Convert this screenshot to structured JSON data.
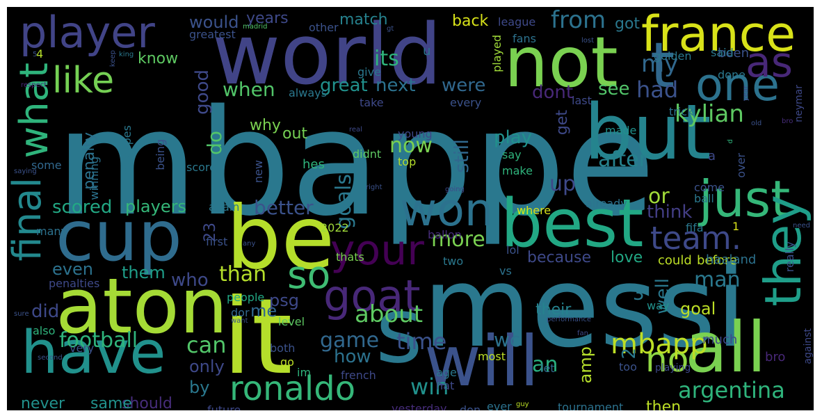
{
  "cloud": {
    "words": [
      {
        "t": "mbappe",
        "c": "#2a788e"
      },
      {
        "t": "messi",
        "c": "#2a788e"
      },
      {
        "t": "world",
        "c": "#414487"
      },
      {
        "t": "it",
        "c": "#b5de2b"
      },
      {
        "t": "be",
        "c": "#b5de2b"
      },
      {
        "t": "aton",
        "c": "#a5db36"
      },
      {
        "t": "cup",
        "c": "#2f6c8e"
      },
      {
        "t": "not",
        "c": "#7ad151"
      },
      {
        "t": "but",
        "c": "#25848e"
      },
      {
        "t": "s",
        "c": "#2a788e"
      },
      {
        "t": "all",
        "c": "#7ad151"
      },
      {
        "t": "will",
        "c": "#3b528b"
      },
      {
        "t": "have",
        "c": "#21918c"
      },
      {
        "t": "best",
        "c": "#22a884"
      },
      {
        "t": "france",
        "c": "#d8e219"
      },
      {
        "t": "player",
        "c": "#414487"
      },
      {
        "t": "t",
        "c": "#31688e"
      },
      {
        "t": "one",
        "c": "#2c728e"
      },
      {
        "t": "as",
        "c": "#482878"
      },
      {
        "t": "like",
        "c": "#75d054"
      },
      {
        "t": "what",
        "c": "#2fb47c"
      },
      {
        "t": "final",
        "c": "#23898e"
      },
      {
        "t": "just",
        "c": "#35b779"
      },
      {
        "t": "won",
        "c": "#2c728e"
      },
      {
        "t": "your",
        "c": "#440154"
      },
      {
        "t": "so",
        "c": "#3fbc73"
      },
      {
        "t": "goat",
        "c": "#482878"
      },
      {
        "t": "team.",
        "c": "#3e4989"
      },
      {
        "t": "they",
        "c": "#1f9e89"
      },
      {
        "t": "ronaldo",
        "c": "#35b779"
      },
      {
        "t": "no",
        "c": "#90d743"
      },
      {
        "t": "mbapp",
        "c": "#bddf26"
      },
      {
        "t": "kylian",
        "c": "#5ec962"
      },
      {
        "t": "football",
        "c": "#2fb47c"
      },
      {
        "t": "argentina",
        "c": "#2fb47c"
      },
      {
        "t": "goals",
        "c": "#2a788e"
      },
      {
        "t": "better",
        "c": "#3b528b"
      },
      {
        "t": "more",
        "c": "#7ad151"
      },
      {
        "t": "about",
        "c": "#5ec962"
      },
      {
        "t": "game",
        "c": "#31688e"
      },
      {
        "t": "time",
        "c": "#3b528b"
      },
      {
        "t": "can",
        "c": "#52c569"
      },
      {
        "t": "win",
        "c": "#21918c"
      },
      {
        "t": "from",
        "c": "#2c728e"
      },
      {
        "t": "my",
        "c": "#31688e"
      },
      {
        "t": "had",
        "c": "#3b528b"
      },
      {
        "t": "its",
        "c": "#2fb47c"
      },
      {
        "t": "next",
        "c": "#2c728e"
      },
      {
        "t": "great",
        "c": "#21918c"
      },
      {
        "t": "were",
        "c": "#31688e"
      },
      {
        "t": "when",
        "c": "#52c569"
      },
      {
        "t": "now",
        "c": "#7ad151"
      },
      {
        "t": "after",
        "c": "#26828e"
      },
      {
        "t": "play",
        "c": "#21918c"
      },
      {
        "t": "up",
        "c": "#3e4989"
      },
      {
        "t": "or",
        "c": "#a0da39"
      },
      {
        "t": "think",
        "c": "#433e85"
      },
      {
        "t": "scored",
        "c": "#22a884"
      },
      {
        "t": "players",
        "c": "#35b779"
      },
      {
        "t": "than",
        "c": "#b5de2b"
      },
      {
        "t": "even",
        "c": "#2c728e"
      },
      {
        "t": "who",
        "c": "#3e4989"
      },
      {
        "t": "did",
        "c": "#3e4989"
      },
      {
        "t": "them",
        "c": "#1f9e89"
      },
      {
        "t": "man",
        "c": "#2a788e"
      },
      {
        "t": "still",
        "c": "#31688e"
      },
      {
        "t": "wc",
        "c": "#2c728e"
      },
      {
        "t": "how",
        "c": "#2c728e"
      },
      {
        "t": "an",
        "c": "#29af7f"
      },
      {
        "t": "only",
        "c": "#3e4989"
      },
      {
        "t": "by",
        "c": "#2a788e"
      },
      {
        "t": "should",
        "c": "#472d7b"
      },
      {
        "t": "never",
        "c": "#21918c"
      },
      {
        "t": "same",
        "c": "#21918c"
      },
      {
        "t": "would",
        "c": "#3b528b"
      },
      {
        "t": "years",
        "c": "#3e4989"
      },
      {
        "t": "match",
        "c": "#26828e"
      },
      {
        "t": "back",
        "c": "#d8e219"
      },
      {
        "t": "got",
        "c": "#2a788e"
      },
      {
        "t": "know",
        "c": "#5ec962"
      },
      {
        "t": "good",
        "c": "#3e4989"
      },
      {
        "t": "do",
        "c": "#52c569"
      },
      {
        "t": "dont",
        "c": "#482878"
      },
      {
        "t": "see",
        "c": "#52c569"
      },
      {
        "t": "get",
        "c": "#3e4989"
      },
      {
        "t": "well",
        "c": "#2a788e"
      },
      {
        "t": "goal",
        "c": "#bddf26"
      },
      {
        "t": "their",
        "c": "#26828e"
      },
      {
        "t": "me",
        "c": "#31688e"
      },
      {
        "t": "because",
        "c": "#3e4989"
      },
      {
        "t": "love",
        "c": "#22a884"
      },
      {
        "t": "could",
        "c": "#bddf26"
      },
      {
        "t": "before",
        "c": "#bddf26"
      },
      {
        "t": "psg",
        "c": "#3e4989"
      },
      {
        "t": "23",
        "c": "#3e4989"
      },
      {
        "t": "3",
        "c": "#2a788e"
      },
      {
        "t": "2",
        "c": "#2a788e"
      },
      {
        "t": "amp",
        "c": "#b5de2b"
      },
      {
        "t": "then",
        "c": "#bddf26"
      },
      {
        "t": "tournament",
        "c": "#2c728e"
      },
      {
        "t": "much",
        "c": "#3e4989"
      },
      {
        "t": "penalty",
        "c": "#2c728e"
      },
      {
        "t": "out",
        "c": "#75d054"
      },
      {
        "t": "why",
        "c": "#7ad151"
      },
      {
        "t": "played",
        "c": "#a0da39"
      },
      {
        "t": "u",
        "c": "#2c728e"
      },
      {
        "t": "other",
        "c": "#3b528b"
      },
      {
        "t": "league",
        "c": "#3e4989"
      },
      {
        "t": "fans",
        "c": "#2c728e"
      },
      {
        "t": "been",
        "c": "#3b528b"
      },
      {
        "t": "done",
        "c": "#2a788e"
      },
      {
        "t": "said",
        "c": "#2a788e"
      },
      {
        "t": "golden",
        "c": "#2a788e"
      },
      {
        "t": "last",
        "c": "#3e4989"
      },
      {
        "t": "neymar",
        "c": "#3e4989"
      },
      {
        "t": "trick",
        "c": "#2c728e"
      },
      {
        "t": "made",
        "c": "#21918c"
      },
      {
        "t": "say",
        "c": "#2fb47c"
      },
      {
        "t": "make",
        "c": "#2fb47c"
      },
      {
        "t": "come",
        "c": "#3b528b"
      },
      {
        "t": "ball",
        "c": "#2a788e"
      },
      {
        "t": "over",
        "c": "#3b528b"
      },
      {
        "t": "already",
        "c": "#2c728e"
      },
      {
        "t": "where",
        "c": "#d8e219"
      },
      {
        "t": "fifa",
        "c": "#2a788e"
      },
      {
        "t": "really",
        "c": "#3b528b"
      },
      {
        "t": "need",
        "c": "#3b528b"
      },
      {
        "t": "1",
        "c": "#d8e219"
      },
      {
        "t": "lol",
        "c": "#3b528b"
      },
      {
        "t": "two",
        "c": "#2a788e"
      },
      {
        "t": "vs",
        "c": "#2c728e"
      },
      {
        "t": "haaland",
        "c": "#2c728e"
      },
      {
        "t": "ballon",
        "c": "#472d7b"
      },
      {
        "t": "thats",
        "c": "#7ad151"
      },
      {
        "t": "2022",
        "c": "#a0da39"
      },
      {
        "t": "again",
        "c": "#2a788e"
      },
      {
        "t": "first",
        "c": "#3b528b"
      },
      {
        "t": "any",
        "c": "#3b528b"
      },
      {
        "t": "people",
        "c": "#22a884"
      },
      {
        "t": "dor",
        "c": "#31688e"
      },
      {
        "t": "level",
        "c": "#5ec962"
      },
      {
        "t": "want",
        "c": "#3b528b"
      },
      {
        "t": "way",
        "c": "#21918c"
      },
      {
        "t": "performance",
        "c": "#3b528b"
      },
      {
        "t": "fan",
        "c": "#3e4989"
      },
      {
        "t": "most",
        "c": "#bddf26"
      },
      {
        "t": "age",
        "c": "#2a788e"
      },
      {
        "t": "hat",
        "c": "#3e4989"
      },
      {
        "t": "im",
        "c": "#2fb47c"
      },
      {
        "t": "go",
        "c": "#bddf26"
      },
      {
        "t": "french",
        "c": "#3e4989"
      },
      {
        "t": "both",
        "c": "#3b528b"
      },
      {
        "t": "too",
        "c": "#3b528b"
      },
      {
        "t": "playing",
        "c": "#3e4989"
      },
      {
        "t": "let",
        "c": "#31688e"
      },
      {
        "t": "ever",
        "c": "#2c728e"
      },
      {
        "t": "guy",
        "c": "#bddf26"
      },
      {
        "t": "don",
        "c": "#3b528b"
      },
      {
        "t": "yesterday",
        "c": "#472d7b"
      },
      {
        "t": "future",
        "c": "#3e4989"
      },
      {
        "t": "against",
        "c": "#3e4989"
      },
      {
        "t": "bro",
        "c": "#482878"
      },
      {
        "t": "very",
        "c": "#3b528b"
      },
      {
        "t": "also",
        "c": "#2fb47c"
      },
      {
        "t": "second",
        "c": "#3b528b"
      },
      {
        "t": "sure",
        "c": "#3b528b"
      },
      {
        "t": "penalties",
        "c": "#3e4989"
      },
      {
        "t": "many",
        "c": "#2c728e"
      },
      {
        "t": "some",
        "c": "#31688e"
      },
      {
        "t": "saying",
        "c": "#3b528b"
      },
      {
        "t": "winning",
        "c": "#2c728e"
      },
      {
        "t": "mbappes",
        "c": "#2a788e"
      },
      {
        "t": "being",
        "c": "#3b528b"
      },
      {
        "t": "new",
        "c": "#3b528b"
      },
      {
        "t": "right",
        "c": "#3b528b"
      },
      {
        "t": "top",
        "c": "#b5de2b"
      },
      {
        "t": "hes",
        "c": "#2fb47c"
      },
      {
        "t": "didnt",
        "c": "#5ec962"
      },
      {
        "t": "score",
        "c": "#2a788e"
      },
      {
        "t": "young",
        "c": "#3e4989"
      },
      {
        "t": "real",
        "c": "#3e4989"
      },
      {
        "t": "every",
        "c": "#3b528b"
      },
      {
        "t": "year",
        "c": "#3e4989"
      },
      {
        "t": "take",
        "c": "#3e4989"
      },
      {
        "t": "give",
        "c": "#2a788e"
      },
      {
        "t": "always",
        "c": "#2a788e"
      },
      {
        "t": "going",
        "c": "#3e4989"
      },
      {
        "t": "greatest",
        "c": "#3b528b"
      },
      {
        "t": "madrid",
        "c": "#52c569"
      },
      {
        "t": "4",
        "c": "#b5de2b"
      },
      {
        "t": "5",
        "c": "#3b528b"
      },
      {
        "t": "keep",
        "c": "#3b528b"
      },
      {
        "t": "king",
        "c": "#2a788e"
      },
      {
        "t": "gt",
        "c": "#3b528b"
      },
      {
        "t": "lost",
        "c": "#3b528b"
      },
      {
        "t": "respect",
        "c": "#482878"
      },
      {
        "t": "old",
        "c": "#3b528b"
      },
      {
        "t": "d",
        "c": "#2fb47c"
      },
      {
        "t": "a",
        "c": "#3e4989"
      },
      {
        "t": "bro",
        "c": "#472d7b"
      }
    ]
  }
}
